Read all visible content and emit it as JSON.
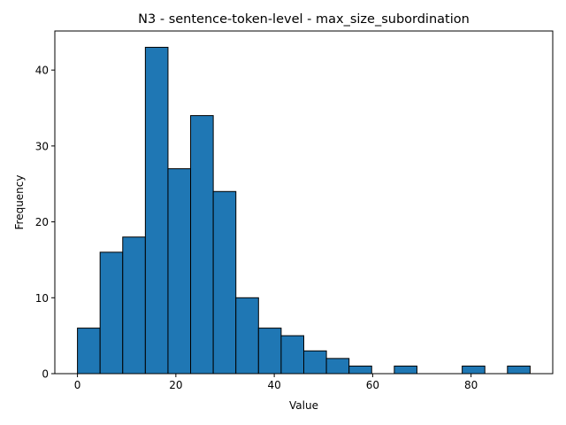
{
  "chart_data": {
    "type": "bar",
    "title": "N3 - sentence-token-level - max_size_subordination",
    "xlabel": "Value",
    "ylabel": "Frequency",
    "xlim": [
      -4.6,
      96.6
    ],
    "ylim": [
      0,
      45.15
    ],
    "xticks": [
      0,
      20,
      40,
      60,
      80
    ],
    "yticks": [
      0,
      10,
      20,
      30,
      40
    ],
    "bin_edges": [
      0,
      4.6,
      9.2,
      13.8,
      18.4,
      23.0,
      27.6,
      32.2,
      36.8,
      41.4,
      46.0,
      50.6,
      55.2,
      59.8,
      64.4,
      69.0,
      73.6,
      78.2,
      82.8,
      87.4,
      92.0
    ],
    "values": [
      6,
      16,
      18,
      43,
      27,
      34,
      24,
      10,
      6,
      5,
      3,
      2,
      1,
      0,
      1,
      0,
      0,
      1,
      0,
      1
    ],
    "bar_color": "#1f77b4",
    "edge_color": "#000000",
    "grid": false,
    "legend": "none"
  }
}
